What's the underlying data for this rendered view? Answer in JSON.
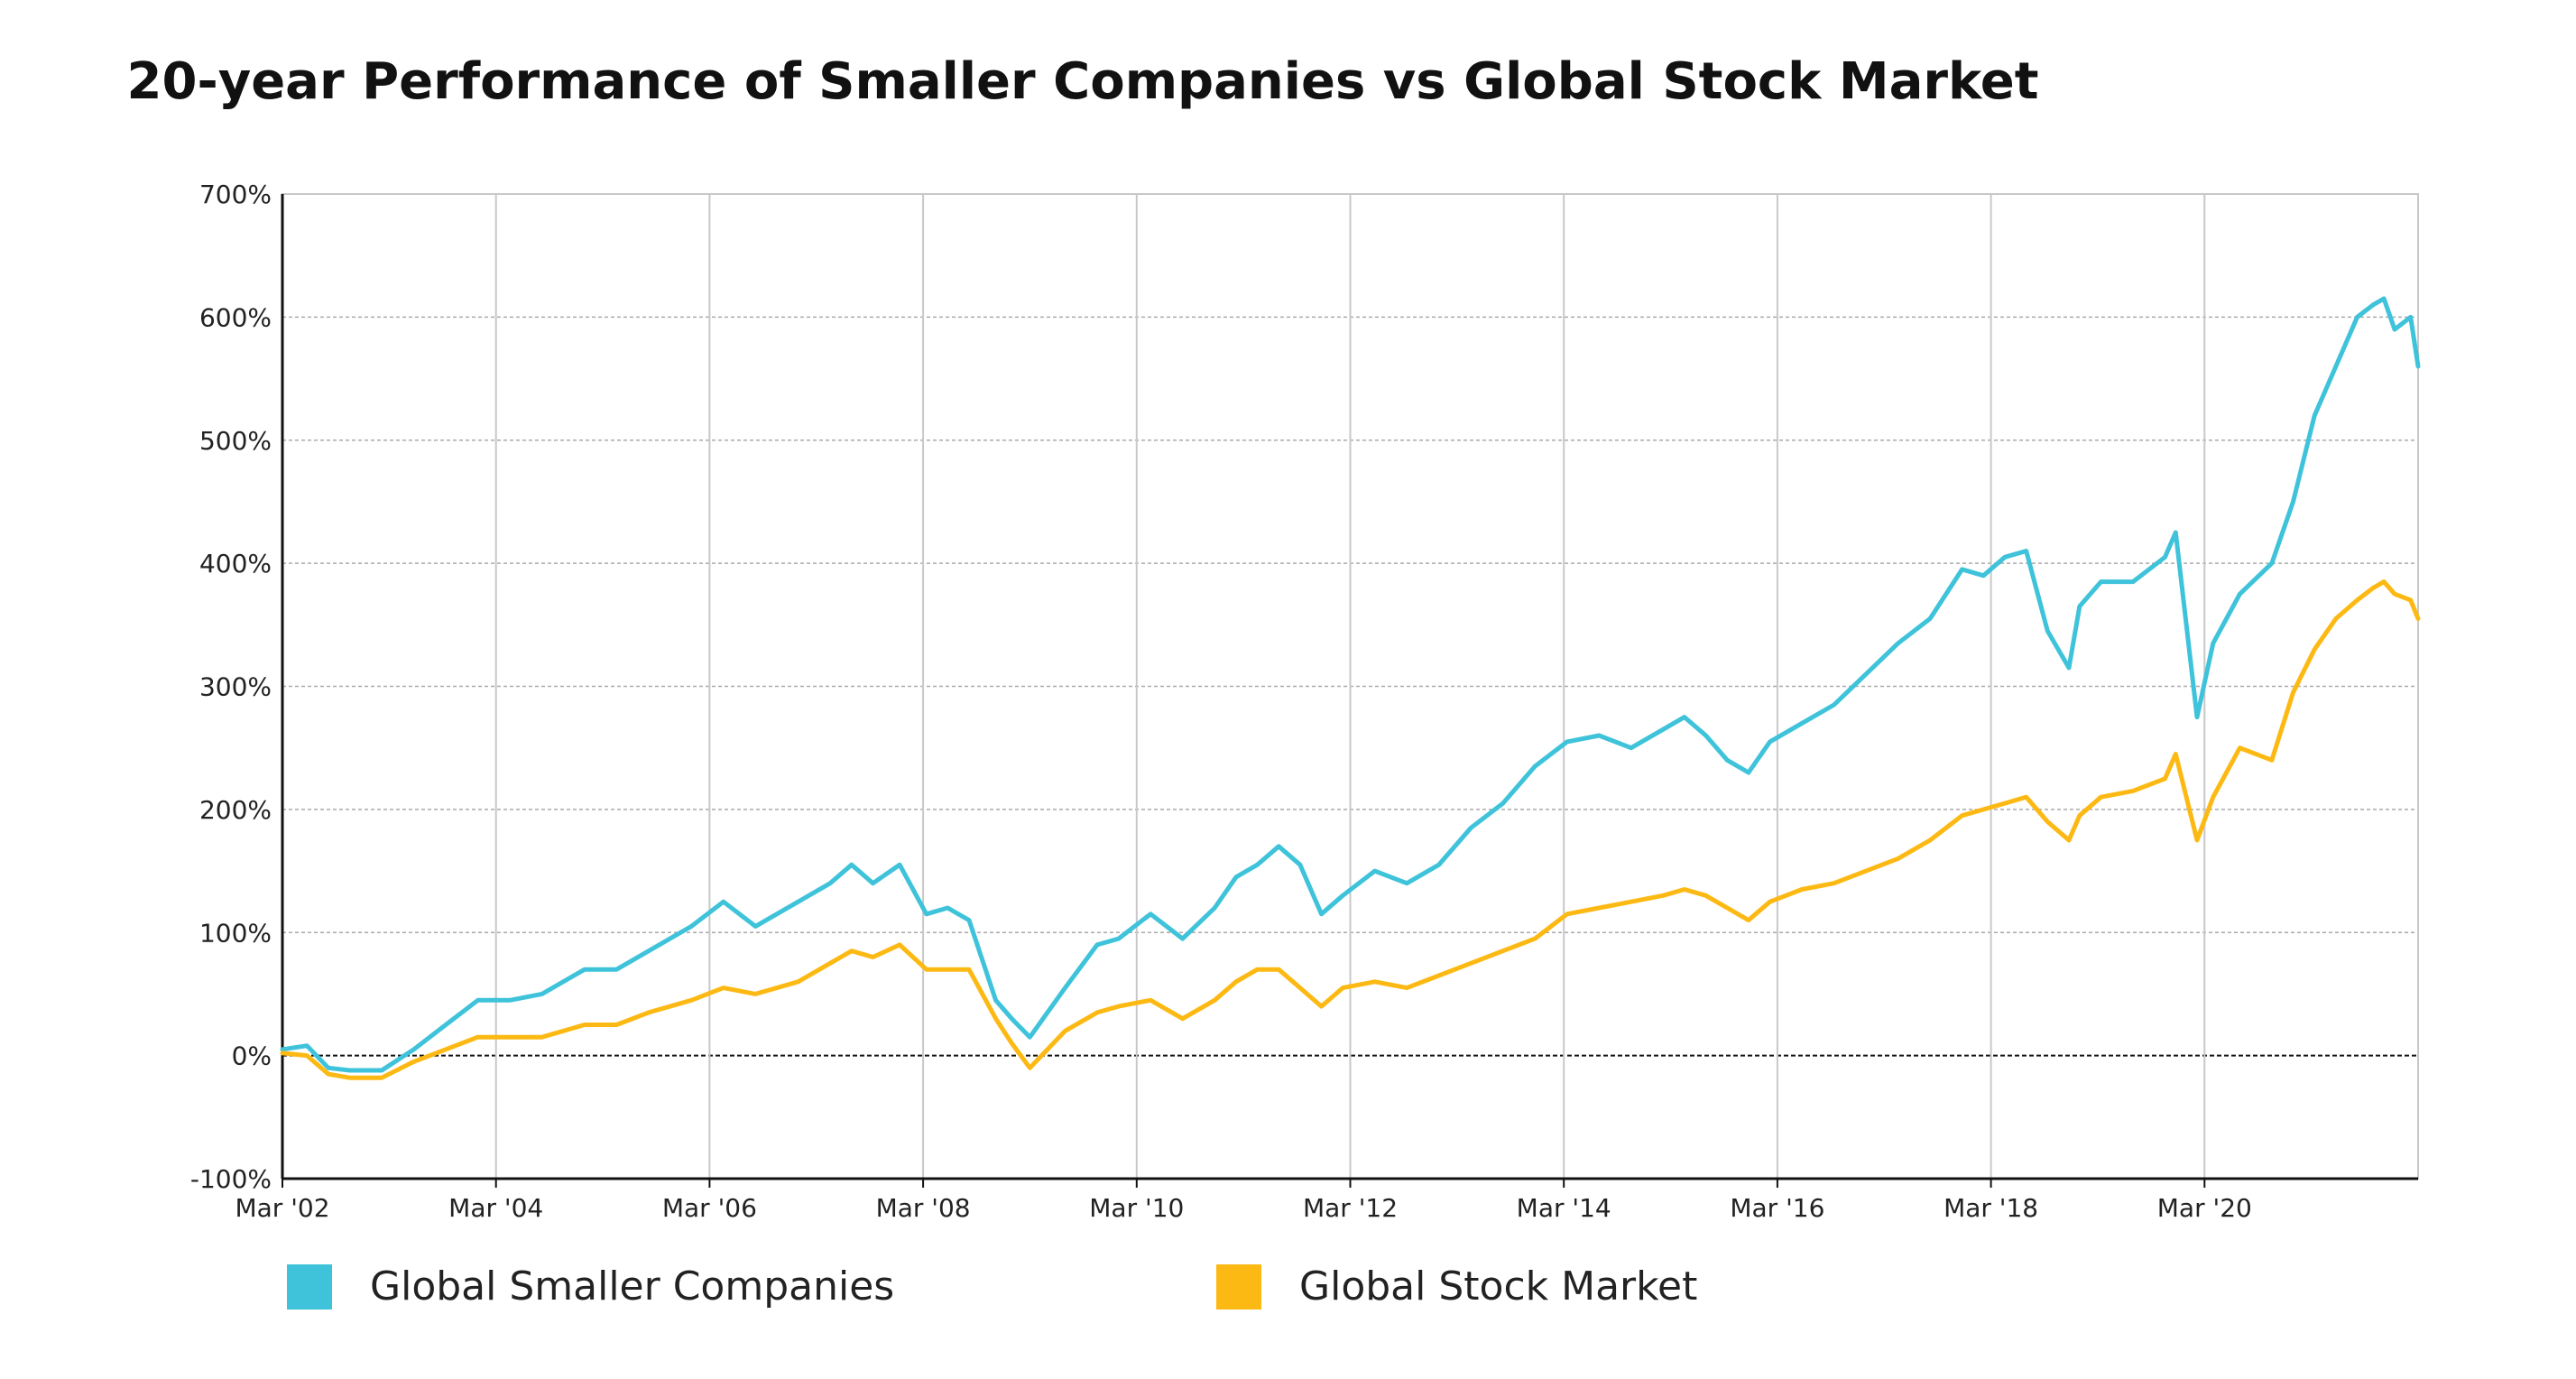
{
  "chart_data": {
    "type": "line",
    "title": "20-year Performance of Smaller Companies vs Global Stock Market",
    "xlabel": "",
    "ylabel": "",
    "xlim": [
      2002.17,
      2022.17
    ],
    "ylim": [
      -100,
      700
    ],
    "y_ticks": [
      700,
      600,
      500,
      400,
      300,
      200,
      100,
      0,
      -100
    ],
    "y_tick_labels": [
      "700%",
      "600%",
      "500%",
      "400%",
      "300%",
      "200%",
      "100%",
      "0%",
      "-100%"
    ],
    "x_ticks": [
      2002.17,
      2004.17,
      2006.17,
      2008.17,
      2010.17,
      2012.17,
      2014.17,
      2016.17,
      2018.17,
      2020.17
    ],
    "x_tick_labels": [
      "Mar '02",
      "Mar '04",
      "Mar '06",
      "Mar '08",
      "Mar '10",
      "Mar '12",
      "Mar '14",
      "Mar '16",
      "Mar '18",
      "Mar '20"
    ],
    "grid": true,
    "legend_position": "bottom",
    "series": [
      {
        "name": "Global Smaller Companies",
        "color": "#3EC3DA",
        "x": [
          2002.17,
          2002.4,
          2002.6,
          2002.8,
          2003.1,
          2003.4,
          2003.7,
          2004.0,
          2004.3,
          2004.6,
          2005.0,
          2005.3,
          2005.6,
          2006.0,
          2006.3,
          2006.6,
          2007.0,
          2007.3,
          2007.5,
          2007.7,
          2007.95,
          2008.2,
          2008.4,
          2008.6,
          2008.85,
          2009.0,
          2009.17,
          2009.5,
          2009.8,
          2010.0,
          2010.3,
          2010.6,
          2010.9,
          2011.1,
          2011.3,
          2011.5,
          2011.7,
          2011.9,
          2012.1,
          2012.4,
          2012.7,
          2013.0,
          2013.3,
          2013.6,
          2013.9,
          2014.2,
          2014.5,
          2014.8,
          2015.1,
          2015.3,
          2015.5,
          2015.7,
          2015.9,
          2016.1,
          2016.4,
          2016.7,
          2017.0,
          2017.3,
          2017.6,
          2017.9,
          2018.1,
          2018.3,
          2018.5,
          2018.7,
          2018.9,
          2019.0,
          2019.2,
          2019.5,
          2019.8,
          2019.9,
          2020.1,
          2020.25,
          2020.5,
          2020.8,
          2021.0,
          2021.2,
          2021.4,
          2021.6,
          2021.75,
          2021.85,
          2021.95,
          2022.1,
          2022.17
        ],
        "values": [
          5,
          8,
          -10,
          -12,
          -12,
          5,
          25,
          45,
          45,
          50,
          70,
          70,
          85,
          105,
          125,
          105,
          125,
          140,
          155,
          140,
          155,
          115,
          120,
          110,
          45,
          30,
          15,
          55,
          90,
          95,
          115,
          95,
          120,
          145,
          155,
          170,
          155,
          115,
          130,
          150,
          140,
          155,
          185,
          205,
          235,
          255,
          260,
          250,
          265,
          275,
          260,
          240,
          230,
          255,
          270,
          285,
          310,
          335,
          355,
          395,
          390,
          405,
          410,
          345,
          315,
          365,
          385,
          385,
          405,
          425,
          275,
          335,
          375,
          400,
          450,
          520,
          560,
          600,
          610,
          615,
          590,
          600,
          560
        ]
      },
      {
        "name": "Global Stock Market",
        "color": "#FDB913",
        "x": [
          2002.17,
          2002.4,
          2002.6,
          2002.8,
          2003.1,
          2003.4,
          2003.7,
          2004.0,
          2004.3,
          2004.6,
          2005.0,
          2005.3,
          2005.6,
          2006.0,
          2006.3,
          2006.6,
          2007.0,
          2007.3,
          2007.5,
          2007.7,
          2007.95,
          2008.2,
          2008.4,
          2008.6,
          2008.85,
          2009.0,
          2009.17,
          2009.5,
          2009.8,
          2010.0,
          2010.3,
          2010.6,
          2010.9,
          2011.1,
          2011.3,
          2011.5,
          2011.7,
          2011.9,
          2012.1,
          2012.4,
          2012.7,
          2013.0,
          2013.3,
          2013.6,
          2013.9,
          2014.2,
          2014.5,
          2014.8,
          2015.1,
          2015.3,
          2015.5,
          2015.7,
          2015.9,
          2016.1,
          2016.4,
          2016.7,
          2017.0,
          2017.3,
          2017.6,
          2017.9,
          2018.1,
          2018.3,
          2018.5,
          2018.7,
          2018.9,
          2019.0,
          2019.2,
          2019.5,
          2019.8,
          2019.9,
          2020.1,
          2020.25,
          2020.5,
          2020.8,
          2021.0,
          2021.2,
          2021.4,
          2021.6,
          2021.75,
          2021.85,
          2021.95,
          2022.1,
          2022.17
        ],
        "values": [
          2,
          0,
          -15,
          -18,
          -18,
          -5,
          5,
          15,
          15,
          15,
          25,
          25,
          35,
          45,
          55,
          50,
          60,
          75,
          85,
          80,
          90,
          70,
          70,
          70,
          30,
          10,
          -10,
          20,
          35,
          40,
          45,
          30,
          45,
          60,
          70,
          70,
          55,
          40,
          55,
          60,
          55,
          65,
          75,
          85,
          95,
          115,
          120,
          125,
          130,
          135,
          130,
          120,
          110,
          125,
          135,
          140,
          150,
          160,
          175,
          195,
          200,
          205,
          210,
          190,
          175,
          195,
          210,
          215,
          225,
          245,
          175,
          210,
          250,
          240,
          295,
          330,
          355,
          370,
          380,
          385,
          375,
          370,
          355
        ]
      }
    ]
  }
}
